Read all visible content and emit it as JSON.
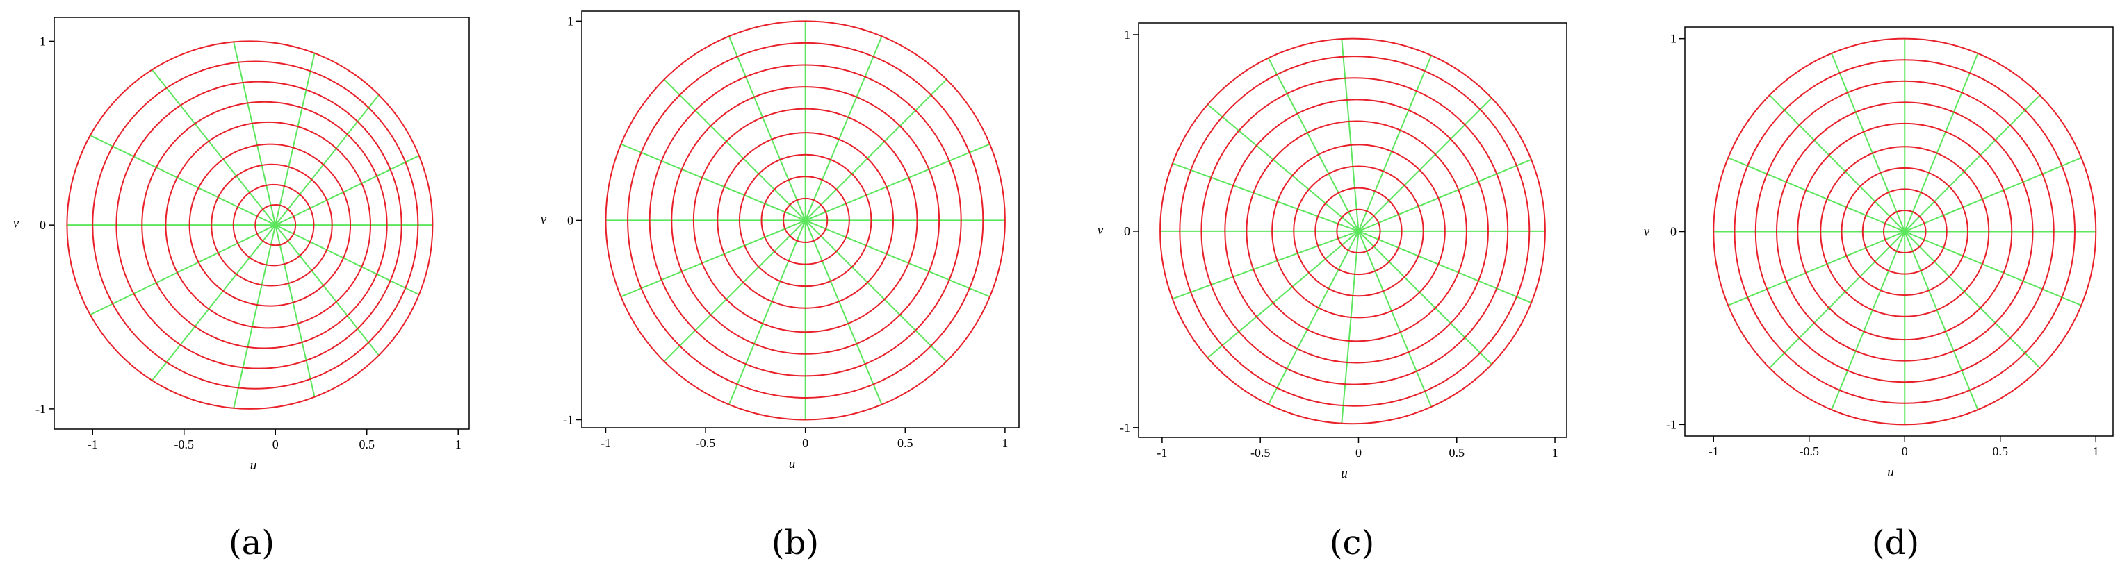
{
  "panels": [
    {
      "type": "polar-grid",
      "caption": "(a)",
      "xlabel": "u",
      "ylabel": "v",
      "xlim": [
        -1.21,
        1.06
      ],
      "ylim": [
        -1.11,
        1.13
      ],
      "xticks": [
        -1,
        -0.5,
        0,
        0.5,
        1
      ],
      "yticks": [
        -1,
        0,
        1
      ],
      "circles": {
        "cx": [
          0,
          -0.01,
          -0.02,
          -0.03,
          -0.04,
          -0.06,
          -0.09,
          -0.11,
          -0.14
        ],
        "r": [
          0.11,
          0.22,
          0.33,
          0.44,
          0.56,
          0.67,
          0.78,
          0.89,
          1.0
        ]
      },
      "spoke_angles": [
        0,
        25.7,
        51.4,
        77.1,
        102.9,
        128.6,
        154.3,
        180,
        205.7,
        231.4,
        257.1,
        282.9,
        308.6,
        334.3
      ],
      "circle_color": "#e8202a",
      "spoke_color": "#5de65d"
    },
    {
      "type": "polar-grid",
      "caption": "(b)",
      "xlabel": "u",
      "ylabel": "v",
      "xlim": [
        -1.12,
        1.07
      ],
      "ylim": [
        -1.04,
        1.05
      ],
      "xticks": [
        -1,
        -0.5,
        0,
        0.5,
        1
      ],
      "yticks": [
        -1,
        0,
        1
      ],
      "circles": {
        "cx": [
          0,
          0,
          0,
          0,
          0,
          0,
          0,
          0,
          0
        ],
        "r": [
          0.11,
          0.22,
          0.33,
          0.44,
          0.56,
          0.67,
          0.78,
          0.89,
          1.0
        ]
      },
      "spoke_angles": [
        0,
        22.5,
        45,
        67.5,
        90,
        112.5,
        135,
        157.5,
        180,
        202.5,
        225,
        247.5,
        270,
        292.5,
        315,
        337.5
      ],
      "circle_color": "#e8202a",
      "spoke_color": "#5de65d"
    },
    {
      "type": "polar-grid",
      "caption": "(c)",
      "xlabel": "u",
      "ylabel": "v",
      "xlim": [
        -1.12,
        1.06
      ],
      "ylim": [
        -1.05,
        1.06
      ],
      "xticks": [
        -1,
        -0.5,
        0,
        0.5,
        1
      ],
      "yticks": [
        -1,
        0,
        1
      ],
      "circles": {
        "cx": [
          0,
          0,
          0,
          0,
          -0.01,
          -0.01,
          -0.02,
          -0.02,
          -0.03
        ],
        "r": [
          0.11,
          0.22,
          0.33,
          0.44,
          0.56,
          0.67,
          0.78,
          0.89,
          0.98
        ]
      },
      "spoke_angles": [
        0,
        22.5,
        45,
        67.5,
        95,
        117.5,
        140,
        160,
        180,
        200,
        220,
        242.5,
        265,
        292.5,
        315,
        337.5
      ],
      "circle_color": "#e8202a",
      "spoke_color": "#5de65d"
    },
    {
      "type": "polar-grid",
      "caption": "(d)",
      "xlabel": "u",
      "ylabel": "v",
      "xlim": [
        -1.15,
        1.09
      ],
      "ylim": [
        -1.06,
        1.06
      ],
      "xticks": [
        -1,
        -0.5,
        0,
        0.5,
        1
      ],
      "yticks": [
        -1,
        0,
        1
      ],
      "circles": {
        "cx": [
          0,
          0,
          0,
          0,
          0,
          0,
          0,
          0,
          0
        ],
        "r": [
          0.11,
          0.22,
          0.33,
          0.44,
          0.56,
          0.67,
          0.78,
          0.89,
          1.0
        ]
      },
      "spoke_angles": [
        0,
        22.5,
        45,
        67.5,
        90,
        112.5,
        135,
        157.5,
        180,
        202.5,
        225,
        247.5,
        270,
        292.5,
        315,
        337.5
      ],
      "circle_color": "#e8202a",
      "spoke_color": "#5de65d"
    }
  ]
}
